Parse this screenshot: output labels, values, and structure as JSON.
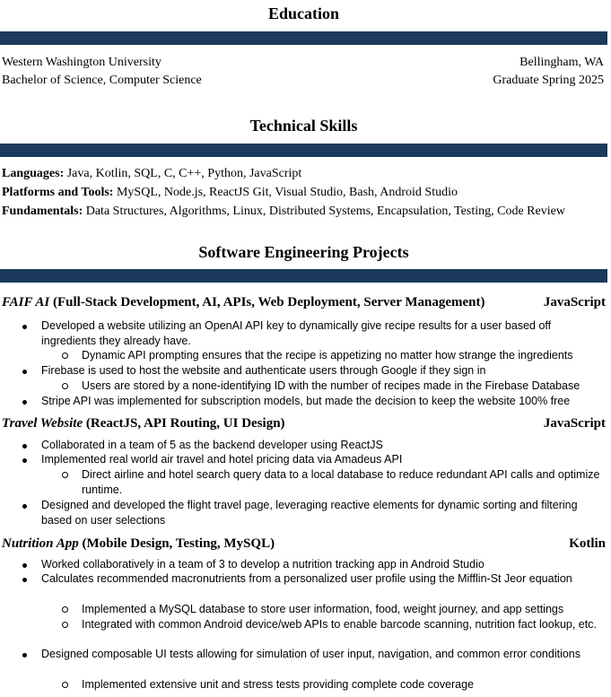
{
  "education": {
    "heading": "Education",
    "school": "Western Washington University",
    "location": "Bellingham, WA",
    "degree": "Bachelor of Science, Computer Science",
    "graduation": "Graduate Spring 2025"
  },
  "skills": {
    "heading": "Technical Skills",
    "languages_label": "Languages:",
    "languages": "Java, Kotlin, SQL, C, C++, Python, JavaScript",
    "platforms_label": "Platforms and Tools:",
    "platforms": "MySQL, Node.js, ReactJS Git, Visual Studio, Bash, Android Studio",
    "fundamentals_label": "Fundamentals:",
    "fundamentals": "Data Structures, Algorithms, Linux, Distributed Systems, Encapsulation, Testing, Code Review"
  },
  "projects": {
    "heading": "Software Engineering Projects",
    "items": [
      {
        "name": "FAIF AI",
        "tags": "(Full-Stack Development, AI, APIs, Web Deployment, Server Management)",
        "lang": "JavaScript",
        "bullets": [
          "Developed a website utilizing an OpenAI API key to dynamically give recipe results for a user based off ingredients they already have.",
          "Dynamic API prompting ensures that the recipe is appetizing no matter how strange the ingredients",
          "Firebase is used to host the website and authenticate users through Google if they sign in",
          "Users are stored by a none-identifying ID with the number of recipes made in the Firebase Database",
          "Stripe API was implemented for subscription models, but made the decision to keep the website 100% free"
        ]
      },
      {
        "name": "Travel Website",
        "tags": "(ReactJS, API Routing, UI Design)",
        "lang": "JavaScript",
        "bullets": [
          "Collaborated in a team of 5 as the backend developer using ReactJS",
          "Implemented real world air travel and hotel pricing data via Amadeus API",
          "Direct airline and hotel search query data to a local database to reduce redundant API calls and optimize runtime.",
          "Designed and developed the flight travel page, leveraging reactive elements for dynamic sorting and filtering based on user selections"
        ]
      },
      {
        "name": "Nutrition App",
        "tags": "(Mobile Design, Testing, MySQL)",
        "lang": "Kotlin",
        "bullets": [
          "Worked collaboratively in a team of 3 to develop a nutrition tracking app in Android Studio",
          "Calculates recommended macronutrients from a personalized user profile using the Mifflin-St Jeor equation",
          "Implemented a MySQL database to store user information, food, weight journey, and app settings",
          "Integrated with common Android device/web APIs to enable barcode scanning, nutrition fact lookup, etc.",
          "Designed composable UI tests allowing for simulation of user input, navigation, and common error conditions",
          "Implemented extensive unit and stress tests providing complete code coverage"
        ]
      }
    ]
  }
}
